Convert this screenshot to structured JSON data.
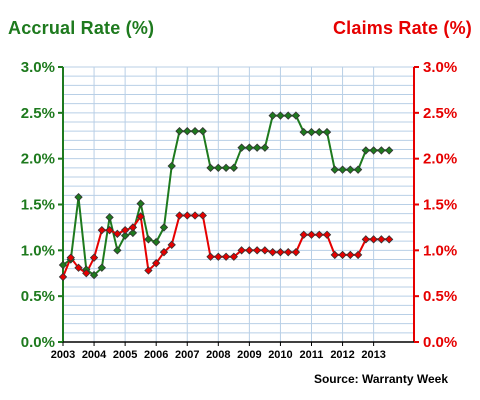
{
  "chart_data": {
    "type": "line",
    "left_title": "Accrual Rate (%)",
    "right_title": "Claims Rate (%)",
    "source": "Source: Warranty Week",
    "colors": {
      "accrual": "#1e7a1e",
      "claims": "#e60000",
      "grid": "#b8cfe6",
      "left_axis": "#1e7a1e",
      "right_axis": "#e60000"
    },
    "y_ticks": [
      "0.0%",
      "0.5%",
      "1.0%",
      "1.5%",
      "2.0%",
      "2.5%",
      "3.0%"
    ],
    "ylim": [
      0,
      3.0
    ],
    "x_ticks": [
      "2003",
      "2004",
      "2005",
      "2006",
      "2007",
      "2008",
      "2009",
      "2010",
      "2011",
      "2012",
      "2013"
    ],
    "x_range": [
      2003,
      2014.3
    ],
    "grid": true,
    "series": [
      {
        "name": "Accrual Rate (%)",
        "axis": "left",
        "points": [
          [
            2003.0,
            0.84
          ],
          [
            2003.25,
            0.9
          ],
          [
            2003.5,
            1.58
          ],
          [
            2003.75,
            0.79
          ],
          [
            2004.0,
            0.73
          ],
          [
            2004.25,
            0.81
          ],
          [
            2004.5,
            1.36
          ],
          [
            2004.75,
            1.0
          ],
          [
            2005.0,
            1.16
          ],
          [
            2005.25,
            1.19
          ],
          [
            2005.5,
            1.51
          ],
          [
            2005.75,
            1.12
          ],
          [
            2006.0,
            1.09
          ],
          [
            2006.25,
            1.25
          ],
          [
            2006.5,
            1.92
          ],
          [
            2006.75,
            2.3
          ],
          [
            2007.0,
            2.3
          ],
          [
            2007.25,
            2.3
          ],
          [
            2007.5,
            2.3
          ],
          [
            2007.75,
            1.9
          ],
          [
            2008.0,
            1.9
          ],
          [
            2008.25,
            1.9
          ],
          [
            2008.5,
            1.9
          ],
          [
            2008.75,
            2.12
          ],
          [
            2009.0,
            2.12
          ],
          [
            2009.25,
            2.12
          ],
          [
            2009.5,
            2.12
          ],
          [
            2009.75,
            2.47
          ],
          [
            2010.0,
            2.47
          ],
          [
            2010.25,
            2.47
          ],
          [
            2010.5,
            2.47
          ],
          [
            2010.75,
            2.29
          ],
          [
            2011.0,
            2.29
          ],
          [
            2011.25,
            2.29
          ],
          [
            2011.5,
            2.29
          ],
          [
            2011.75,
            1.88
          ],
          [
            2012.0,
            1.88
          ],
          [
            2012.25,
            1.88
          ],
          [
            2012.5,
            1.88
          ],
          [
            2012.75,
            2.09
          ],
          [
            2013.0,
            2.09
          ],
          [
            2013.25,
            2.09
          ],
          [
            2013.5,
            2.09
          ]
        ]
      },
      {
        "name": "Claims Rate (%)",
        "axis": "right",
        "points": [
          [
            2003.0,
            0.71
          ],
          [
            2003.25,
            0.92
          ],
          [
            2003.5,
            0.81
          ],
          [
            2003.75,
            0.75
          ],
          [
            2004.0,
            0.92
          ],
          [
            2004.25,
            1.22
          ],
          [
            2004.5,
            1.22
          ],
          [
            2004.75,
            1.18
          ],
          [
            2005.0,
            1.22
          ],
          [
            2005.25,
            1.25
          ],
          [
            2005.5,
            1.37
          ],
          [
            2005.75,
            0.78
          ],
          [
            2006.0,
            0.86
          ],
          [
            2006.25,
            0.98
          ],
          [
            2006.5,
            1.06
          ],
          [
            2006.75,
            1.38
          ],
          [
            2007.0,
            1.38
          ],
          [
            2007.25,
            1.38
          ],
          [
            2007.5,
            1.38
          ],
          [
            2007.75,
            0.93
          ],
          [
            2008.0,
            0.93
          ],
          [
            2008.25,
            0.93
          ],
          [
            2008.5,
            0.93
          ],
          [
            2008.75,
            1.0
          ],
          [
            2009.0,
            1.0
          ],
          [
            2009.25,
            1.0
          ],
          [
            2009.5,
            1.0
          ],
          [
            2009.75,
            0.98
          ],
          [
            2010.0,
            0.98
          ],
          [
            2010.25,
            0.98
          ],
          [
            2010.5,
            0.98
          ],
          [
            2010.75,
            1.17
          ],
          [
            2011.0,
            1.17
          ],
          [
            2011.25,
            1.17
          ],
          [
            2011.5,
            1.17
          ],
          [
            2011.75,
            0.95
          ],
          [
            2012.0,
            0.95
          ],
          [
            2012.25,
            0.95
          ],
          [
            2012.5,
            0.95
          ],
          [
            2012.75,
            1.12
          ],
          [
            2013.0,
            1.12
          ],
          [
            2013.25,
            1.12
          ],
          [
            2013.5,
            1.12
          ]
        ]
      }
    ]
  }
}
